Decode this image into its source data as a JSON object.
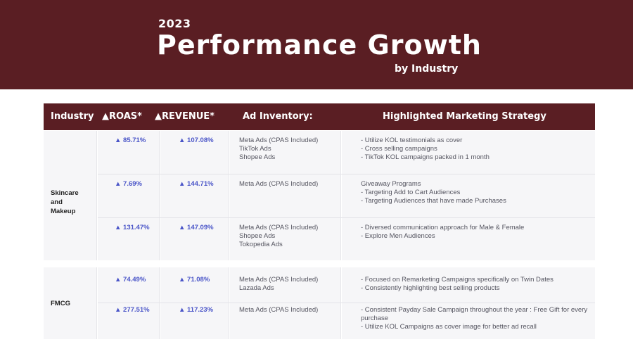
{
  "banner": {
    "year": "2023",
    "title": "Performance Growth",
    "subtitle": "by Industry"
  },
  "headers": {
    "industry": "Industry",
    "roas": "▲ROAS*",
    "revenue": "▲REVENUE*",
    "inventory": "Ad Inventory:",
    "strategy": "Highlighted Marketing Strategy"
  },
  "groups": [
    {
      "industry": "Skincare\nand\nMakeup",
      "rows": [
        {
          "roas": "▲ 85.71%",
          "revenue": "▲ 107.08%",
          "inventory": "Meta Ads (CPAS Included)\nTikTok Ads\nShopee Ads",
          "strategy": "- Utilize KOL testimonials as cover\n- Cross selling campaigns\n- TikTok KOL campaigns packed in 1 month"
        },
        {
          "roas": "▲ 7.69%",
          "revenue": "▲ 144.71%",
          "inventory": "Meta Ads (CPAS Included)",
          "strategy": "Giveaway Programs\n- Targeting Add to Cart Audiences\n- Targeting Audiences that have made Purchases"
        },
        {
          "roas": "▲ 131.47%",
          "revenue": "▲ 147.09%",
          "inventory": "Meta Ads (CPAS Included)\nShopee Ads\nTokopedia Ads",
          "strategy": "- Diversed communication approach for Male & Female\n- Explore Men Audiences"
        }
      ]
    },
    {
      "industry": "FMCG",
      "rows": [
        {
          "roas": "▲ 74.49%",
          "revenue": "▲ 71.08%",
          "inventory": "Meta Ads (CPAS Included)\nLazada Ads",
          "strategy": "- Focused on Remarketing Campaigns specifically on Twin Dates\n- Consistently highlighting best selling products"
        },
        {
          "roas": "▲ 277.51%",
          "revenue": "▲ 117.23%",
          "inventory": "Meta Ads (CPAS Included)",
          "strategy": "- Consistent Payday Sale Campaign throughout the year : Free Gift for every\npurchase\n- Utilize KOL Campaigns as cover image for better ad recall"
        }
      ]
    }
  ]
}
